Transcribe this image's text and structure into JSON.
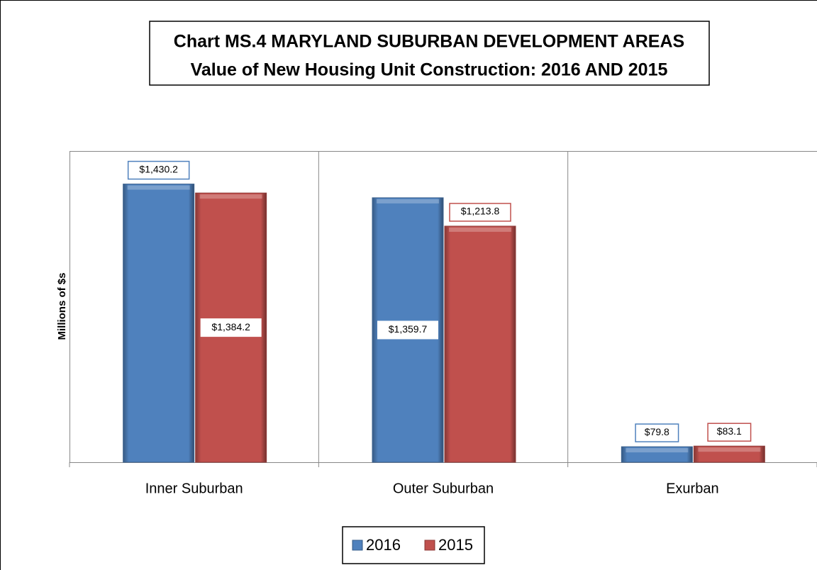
{
  "chart_data": {
    "type": "bar",
    "title": "Chart MS.4 MARYLAND SUBURBAN DEVELOPMENT AREAS",
    "subtitle": "Value of New Housing Unit Construction: 2016 AND 2015",
    "y_label": "Millions of $s",
    "categories": [
      "Inner Suburban",
      "Outer Suburban",
      "Exurban"
    ],
    "series": [
      {
        "name": "2016",
        "color": "#4f81bd",
        "values": [
          1430.2,
          1359.7,
          79.8
        ],
        "value_labels": [
          "$1,430.2",
          "$1,359.7",
          "$79.8"
        ]
      },
      {
        "name": "2015",
        "color": "#c0504d",
        "values": [
          1384.2,
          1213.8,
          83.1
        ],
        "value_labels": [
          "$1,384.2",
          "$1,213.8",
          "$83.1"
        ]
      }
    ],
    "ylim": [
      0,
      1600
    ],
    "legend": "bottom"
  }
}
